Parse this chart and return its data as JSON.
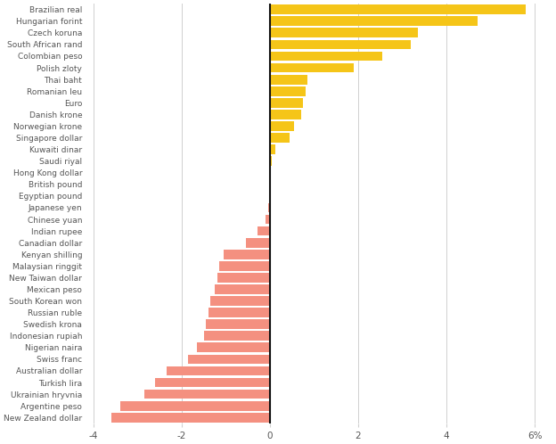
{
  "currencies": [
    "New Zealand dollar",
    "Argentine peso",
    "Ukrainian hryvnia",
    "Turkish lira",
    "Australian dollar",
    "Swiss franc",
    "Nigerian naira",
    "Indonesian rupiah",
    "Swedish krona",
    "Russian ruble",
    "South Korean won",
    "Mexican peso",
    "New Taiwan dollar",
    "Malaysian ringgit",
    "Kenyan shilling",
    "Canadian dollar",
    "Indian rupee",
    "Chinese yuan",
    "Japanese yen",
    "Egyptian pound",
    "British pound",
    "Hong Kong dollar",
    "Saudi riyal",
    "Kuwaiti dinar",
    "Singapore dollar",
    "Norwegian krone",
    "Danish krone",
    "Euro",
    "Romanian leu",
    "Thai baht",
    "Polish zloty",
    "Colombian peso",
    "South African rand",
    "Czech koruna",
    "Hungarian forint",
    "Brazilian real"
  ],
  "values": [
    -3.6,
    -3.4,
    -2.85,
    -2.6,
    -2.35,
    -1.85,
    -1.65,
    -1.5,
    -1.45,
    -1.4,
    -1.35,
    -1.25,
    -1.2,
    -1.15,
    -1.05,
    -0.55,
    -0.28,
    -0.1,
    -0.05,
    0.0,
    0.0,
    0.0,
    0.05,
    0.12,
    0.45,
    0.55,
    0.7,
    0.75,
    0.8,
    0.85,
    1.9,
    2.55,
    3.2,
    3.35,
    4.7,
    5.8
  ],
  "positive_color": "#F5C518",
  "negative_color": "#F49080",
  "xlim": [
    -4.2,
    6.4
  ],
  "xticks": [
    -4,
    -2,
    0,
    2,
    4,
    6
  ],
  "xtick_labels": [
    "-4",
    "-2",
    "0",
    "2",
    "4",
    "6%"
  ],
  "background_color": "#ffffff",
  "grid_color": "#d0d0d0",
  "label_color": "#555555",
  "zero_line_color": "#111111",
  "bar_height": 0.82,
  "figwidth": 6.24,
  "figheight": 4.98,
  "dpi": 100,
  "label_fontsize": 6.5,
  "tick_fontsize": 7.5
}
